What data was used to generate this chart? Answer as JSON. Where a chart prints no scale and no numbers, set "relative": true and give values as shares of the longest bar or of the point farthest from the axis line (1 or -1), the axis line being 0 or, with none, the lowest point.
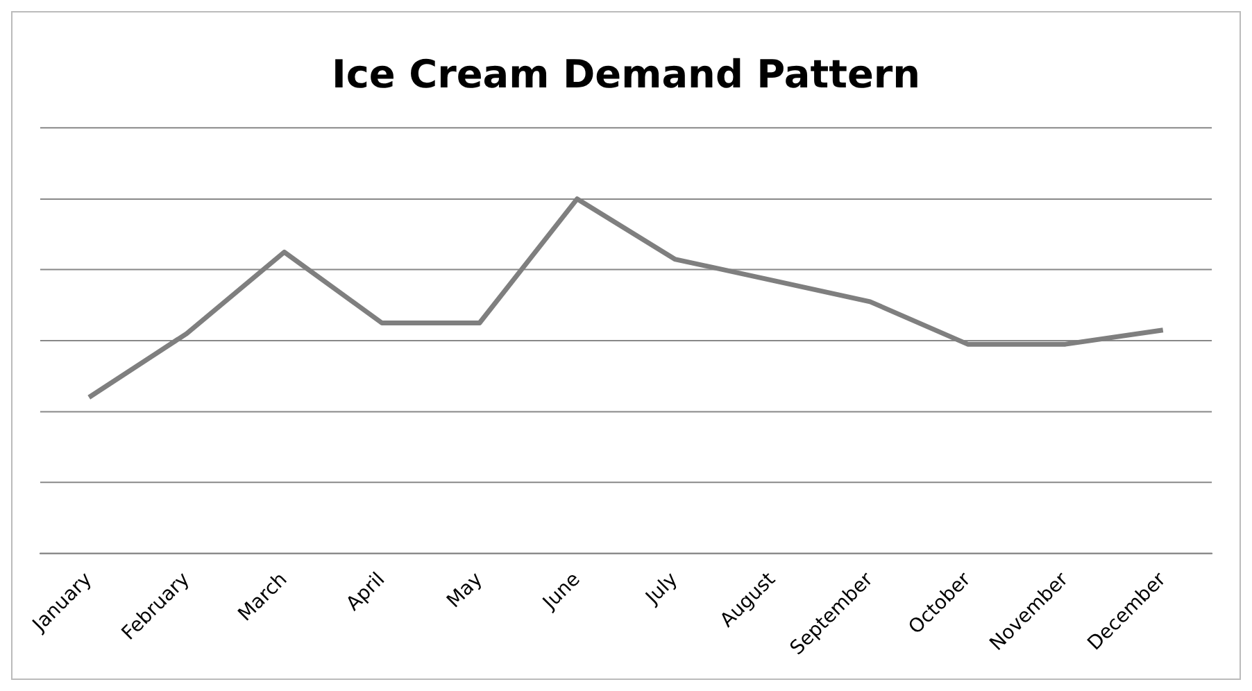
{
  "chart_data": {
    "type": "line",
    "title": "Ice Cream Demand Pattern",
    "categories": [
      "January",
      "February",
      "March",
      "April",
      "May",
      "June",
      "July",
      "August",
      "September",
      "October",
      "November",
      "December"
    ],
    "series": [
      {
        "color": "#7f7f7f",
        "values": [
          0.44,
          0.62,
          0.85,
          0.65,
          0.65,
          1,
          0.83,
          0.77,
          0.71,
          0.59,
          0.59,
          0.63
        ]
      }
    ],
    "relative": true,
    "grid": "y",
    "legend": false,
    "marker": "none",
    "line_style": "solid"
  }
}
